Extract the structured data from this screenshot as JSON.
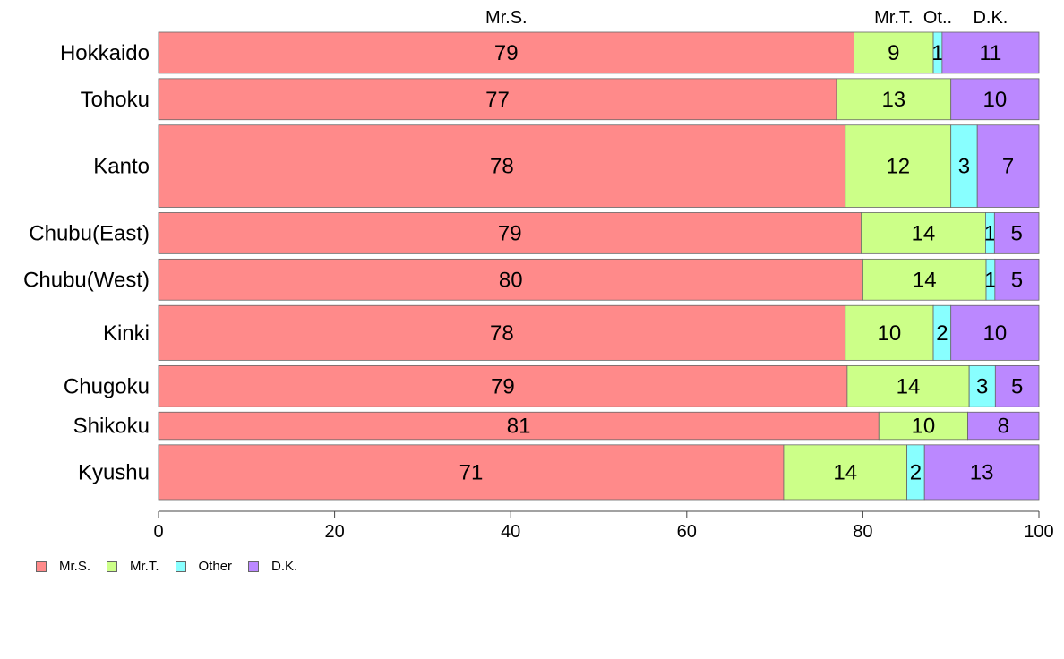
{
  "chart_data": {
    "type": "bar",
    "orientation": "horizontal",
    "stacked": true,
    "categories": [
      "Hokkaido",
      "Tohoku",
      "Kanto",
      "Chubu(East)",
      "Chubu(West)",
      "Kinki",
      "Chugoku",
      "Shikoku",
      "Kyushu"
    ],
    "series": [
      {
        "name": "Mr.S.",
        "short_label": "Mr.S.",
        "color": "#ff8a8a",
        "values": [
          79,
          77,
          78,
          79,
          80,
          78,
          79,
          81,
          71
        ]
      },
      {
        "name": "Mr.T.",
        "short_label": "Mr.T.",
        "color": "#ccff88",
        "values": [
          9,
          13,
          12,
          14,
          14,
          10,
          14,
          10,
          14
        ]
      },
      {
        "name": "Other",
        "short_label": "Ot..",
        "color": "#88ffff",
        "values": [
          1,
          0,
          3,
          1,
          1,
          2,
          3,
          0,
          2
        ]
      },
      {
        "name": "D.K.",
        "short_label": "D.K.",
        "color": "#bb88ff",
        "values": [
          11,
          10,
          7,
          5,
          5,
          10,
          5,
          8,
          13
        ]
      }
    ],
    "bar_weights": [
      3,
      3,
      6,
      3,
      3,
      4,
      3,
      2,
      4
    ],
    "xlim": [
      0,
      100
    ],
    "xticks": [
      0,
      20,
      40,
      60,
      80,
      100
    ],
    "legend_position": "bottom-left",
    "grid": false
  }
}
